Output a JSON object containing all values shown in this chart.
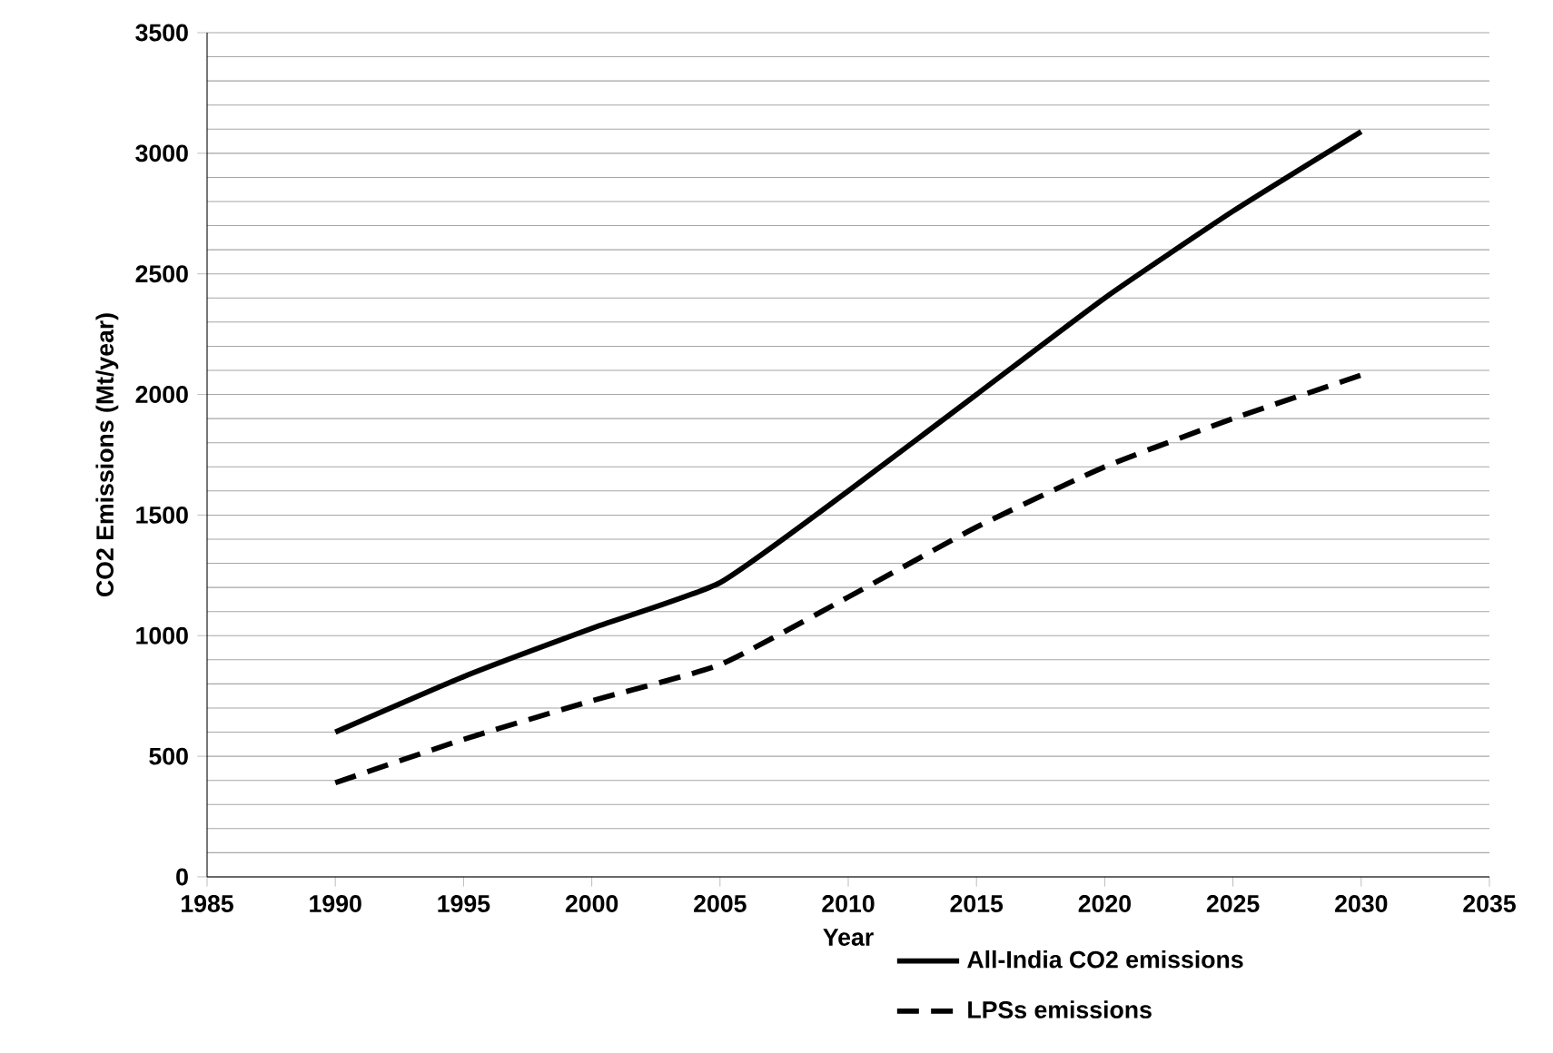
{
  "chart_data": {
    "type": "line",
    "xlabel": "Year",
    "ylabel": "CO2 Emissions  (Mt/year)",
    "x": [
      1990,
      1995,
      2000,
      2005,
      2010,
      2015,
      2020,
      2025,
      2030
    ],
    "series": [
      {
        "name": "All-India CO2 emissions",
        "color": "#000000",
        "line_style": "solid",
        "values": [
          600,
          830,
          1030,
          1220,
          1600,
          2000,
          2400,
          2760,
          3090
        ]
      },
      {
        "name": "LPSs emissions",
        "color": "#000000",
        "line_style": "dashed",
        "values": [
          390,
          570,
          730,
          880,
          1160,
          1450,
          1700,
          1900,
          2080
        ]
      }
    ],
    "xlim": [
      1985,
      2035
    ],
    "xticks": [
      1985,
      1990,
      1995,
      2000,
      2005,
      2010,
      2015,
      2020,
      2025,
      2030,
      2035
    ],
    "ylim": [
      0,
      3500
    ],
    "yticks": [
      0,
      500,
      1000,
      1500,
      2000,
      2500,
      3000,
      3500
    ],
    "grid": "y",
    "legend": "bottom right",
    "marker": "none"
  }
}
